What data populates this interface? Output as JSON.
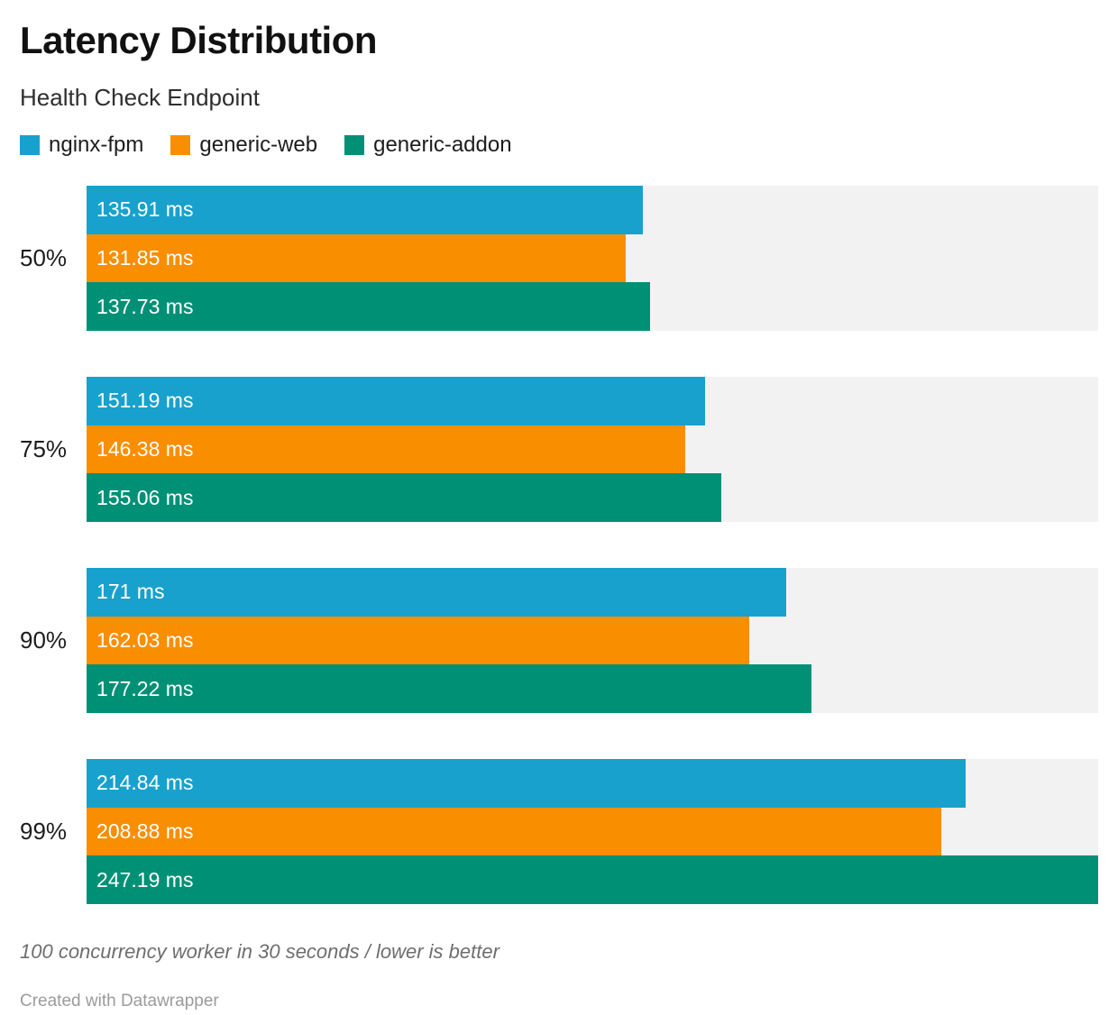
{
  "header": {
    "title": "Latency Distribution",
    "subtitle": "Health Check Endpoint"
  },
  "footer": {
    "note": "100 concurrency worker in 30 seconds / lower is better",
    "attribution": "Created with Datawrapper"
  },
  "colors": {
    "track": "#f2f2f2",
    "bar_label_text": "#ffffff",
    "category_text": "#1d1d1d"
  },
  "chart_data": {
    "type": "bar",
    "orientation": "horizontal",
    "title": "Latency Distribution",
    "subtitle": "Health Check Endpoint",
    "categories": [
      "50%",
      "75%",
      "90%",
      "99%"
    ],
    "series": [
      {
        "name": "nginx-fpm",
        "color": "#18a1cd",
        "values": [
          135.91,
          151.19,
          171,
          214.84
        ],
        "labels": [
          "135.91 ms",
          "151.19 ms",
          "171 ms",
          "214.84 ms"
        ]
      },
      {
        "name": "generic-web",
        "color": "#f98e00",
        "values": [
          131.85,
          146.38,
          162.03,
          208.88
        ],
        "labels": [
          "131.85 ms",
          "146.38 ms",
          "162.03 ms",
          "208.88 ms"
        ]
      },
      {
        "name": "generic-addon",
        "color": "#009076",
        "values": [
          137.73,
          155.06,
          177.22,
          247.19
        ],
        "labels": [
          "137.73 ms",
          "155.06 ms",
          "177.22 ms",
          "247.19 ms"
        ]
      }
    ],
    "value_unit": "ms",
    "xlim": [
      0,
      247.19
    ],
    "grid": false,
    "legend_position": "top",
    "bar_track_color": "#f2f2f2",
    "note": "100 concurrency worker in 30 seconds / lower is better"
  }
}
